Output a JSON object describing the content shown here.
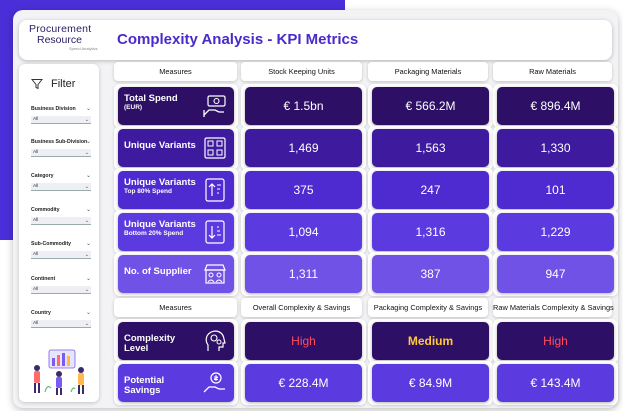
{
  "header": {
    "logo_line1": "Procurement",
    "logo_line2": "Resource",
    "logo_tag": "Spend Analytics",
    "title": "Complexity Analysis - KPI Metrics"
  },
  "sidebar": {
    "filter_label": "Filter",
    "filters": [
      {
        "label": "Business Division",
        "value": "All"
      },
      {
        "label": "Business Sub-Division",
        "value": "All"
      },
      {
        "label": "Category",
        "value": "All"
      },
      {
        "label": "Commodity",
        "value": "All"
      },
      {
        "label": "Sub-Commodity",
        "value": "All"
      },
      {
        "label": "Continent",
        "value": "All"
      },
      {
        "label": "Country",
        "value": "All"
      }
    ]
  },
  "table1": {
    "headers": [
      "Measures",
      "Stock Keeping Units",
      "Packaging Materials",
      "Raw Materials"
    ],
    "rows": [
      {
        "label": "Total Spend",
        "sub": "(EUR)",
        "icon": "money-hand-icon",
        "values": [
          "€ 1.5bn",
          "€ 566.2M",
          "€ 896.4M"
        ]
      },
      {
        "label": "Unique Variants",
        "sub": "",
        "icon": "variants-box-icon",
        "values": [
          "1,469",
          "1,563",
          "1,330"
        ]
      },
      {
        "label": "Unique Variants",
        "sub": "Top 80% Spend",
        "icon": "sort-up-icon",
        "values": [
          "375",
          "247",
          "101"
        ]
      },
      {
        "label": "Unique Variants",
        "sub": "Bottom 20% Spend",
        "icon": "sort-down-icon",
        "values": [
          "1,094",
          "1,316",
          "1,229"
        ]
      },
      {
        "label": "No. of Supplier",
        "sub": "",
        "icon": "supplier-store-icon",
        "values": [
          "1,311",
          "387",
          "947"
        ]
      }
    ]
  },
  "table2": {
    "headers": [
      "Measures",
      "Overall Complexity & Savings",
      "Packaging Complexity & Savings",
      "Raw Materials Complexity & Savings"
    ],
    "rows": [
      {
        "label": "Complexity Level",
        "icon": "gears-head-icon",
        "values": [
          "High",
          "Medium",
          "High"
        ]
      },
      {
        "label": "Potential Savings",
        "icon": "savings-coin-icon",
        "values": [
          "€ 228.4M",
          "€ 84.9M",
          "€ 143.4M"
        ]
      }
    ]
  },
  "colors": {
    "bg_shape": "#4a2fd8",
    "title": "#4a2bc9",
    "high": "#ff4d5e",
    "medium": "#ffc93a"
  }
}
